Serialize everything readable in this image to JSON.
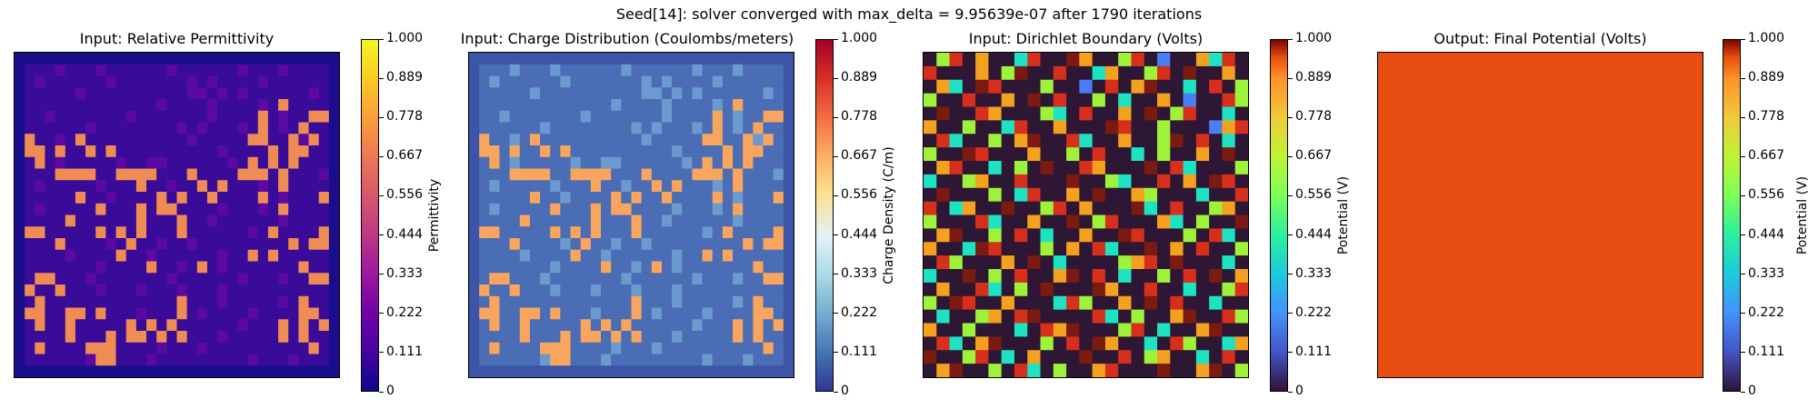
{
  "suptitle": "Seed[14]: solver converged with max_delta = 9.95639e-07 after 1790 iterations",
  "colorbar_ticks": [
    "0",
    "0.111",
    "0.222",
    "0.333",
    "0.444",
    "0.556",
    "0.667",
    "0.778",
    "0.889",
    "1.000"
  ],
  "chart_data": [
    {
      "type": "heatmap",
      "title": "Input: Relative Permittivity",
      "colorbar_label": "Permittivity",
      "colormap": "plasma",
      "vlim": [
        0,
        1
      ],
      "colors": {
        "background": "#1a0d8c",
        "low": "#3a0a99",
        "mid": "#5a09a3",
        "high": "#ef8c53"
      },
      "grid": [
        "00000000000000000000000000000000",
        "01012010201001021010102010201000",
        "00201010020001010202001020100100",
        "01001020100110010220202001010200",
        "00100101010001210102010020301010",
        "00020100000201010012001030200330",
        "01010102000001002020102030203010",
        "03002030010101000210000330032300",
        "03303003030100101000201003033000",
        "00302000102002201000020303030100",
        "01013333013333000310103330301020",
        "00200100201030020130301020300010",
        "01010030020001303003101030201030",
        "00200100301030330100200020300100",
        "00100300100031013002010100201010",
        "03301000303030103010100203101030",
        "01003001020301200201010100030330",
        "00100200103002010100200303001000",
        "01000100200103102030201000103010",
        "00330102010001020100102010200330",
        "03003010201020102010201000100000",
        "00301000100010003010200100203010",
        "03300330301020103020100201003300",
        "00300300010303030100102010303030",
        "01000300030330303010201000303000",
        "00300003330000201020100100100300",
        "01010002330102010101010201020100",
        "00000000000000000000000000000000"
      ]
    },
    {
      "type": "heatmap",
      "title": "Input: Charge Distribution (Coulombs/meters)",
      "colorbar_label": "Charge Density (C/m)",
      "colormap": "RdYlBu_r",
      "vlim": [
        0,
        1
      ],
      "colors": {
        "background": "#3d55a8",
        "low": "#4a6db5",
        "mid": "#6b9ace",
        "high": "#f9a55e"
      },
      "grid": [
        "00000000000000000000000000000000",
        "01012010201001021010102010201000",
        "00201010020001010202001020100100",
        "01001020100110010220202001010200",
        "00100101010001210102010020301010",
        "00020100000201010012001030200330",
        "01010102000001002020102030203010",
        "03002030010101000210000330032300",
        "03303003030100101000201003033000",
        "00302000102002201000020303030100",
        "01013333013333000310103330301020",
        "00200100201030020130301020300010",
        "01010030020001303003101030201030",
        "00200100301030330100200020300100",
        "00100300100031013002010100201010",
        "03301000303030103010100203101030",
        "01003001020301200201010100030330",
        "00100200103002010100200303001000",
        "01000100200103102030201000103010",
        "00330102010001020100102010200330",
        "03003010201020102010201000100000",
        "00301000100010003010200100203010",
        "03300330301020103020100201003300",
        "00300300010303030100102010303030",
        "01000300030330303010201000303000",
        "00300003330000201020100100100300",
        "01010002330102010101010201020100",
        "00000000000000000000000000000000"
      ]
    },
    {
      "type": "heatmap",
      "title": "Input: Dirichlet Boundary (Volts)",
      "colorbar_label": "Potential (V)",
      "colormap": "turbo",
      "vlim": [
        0,
        1
      ],
      "colors": {
        "background": "#2e1635",
        "c1": "#d62f1c",
        "c2": "#f4a11f",
        "c3": "#9ef23a",
        "c4": "#1ee3c2",
        "c5": "#7b1a10",
        "c6": "#4a7ef5"
      },
      "grid": [
        "0310200410052003106002410",
        "1000203500100420031050020",
        "0240510003006010250040103",
        "3001002050100304002060013",
        "0500120003401002050310040",
        "2003004100200051003000621",
        "0140030250014002003501040",
        "3005100020030100403002050",
        "0210040305001200050140003",
        "4003200100050034001020510",
        "0500030410020500230004001",
        "1042005003102000540100320",
        "3000140020050310002403005",
        "0250030104002005100030140",
        "2004510003020140050201003",
        "0130002050400003210500040",
        "4005030100250104003010502",
        "0200140305000520010040031",
        "3051002000413002050100400",
        "0400320150000140300250013",
        "2003000401250003104002500",
        "0140250003010520040130042",
        "5003104020005001032004010",
        "0250030140300210005002503"
      ]
    },
    {
      "type": "heatmap",
      "title": "Output: Final Potential (Volts)",
      "colorbar_label": "Potential (V)",
      "colormap": "turbo",
      "vlim": [
        0,
        1
      ],
      "uniform_value": 0.86,
      "colors": {
        "fill": "#e84e12"
      }
    }
  ]
}
